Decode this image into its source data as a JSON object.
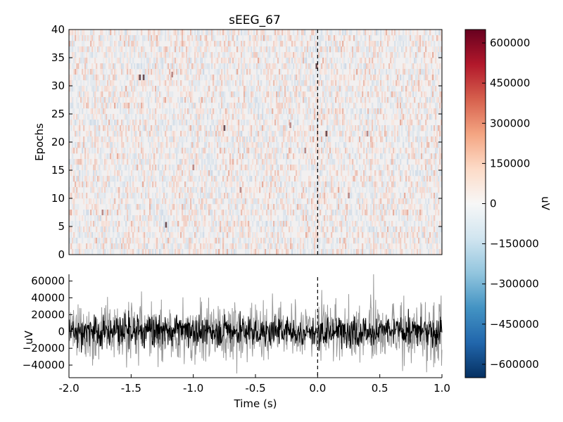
{
  "chart_data": [
    {
      "type": "heatmap",
      "title": "sEEG_67",
      "xlabel": "",
      "ylabel": "Epochs",
      "xlim": [
        -2.0,
        1.0
      ],
      "ylim": [
        0,
        40
      ],
      "y_ticks": [
        "0",
        "5",
        "10",
        "15",
        "20",
        "25",
        "30",
        "35",
        "40"
      ],
      "event_marker_x": 0.0,
      "epochs": 40,
      "colormap": "RdBu_r",
      "colorbar": {
        "label": "uV",
        "range": [
          -650000,
          650000
        ],
        "ticks": [
          "600000",
          "450000",
          "300000",
          "150000",
          "0",
          "−150000",
          "−300000",
          "−450000",
          "−600000"
        ],
        "tick_values": [
          600000,
          450000,
          300000,
          150000,
          0,
          -150000,
          -300000,
          -450000,
          -600000
        ],
        "colors": [
          "#053061",
          "#2166ac",
          "#4393c3",
          "#92c5de",
          "#d1e5f0",
          "#f7f7f7",
          "#fddbc7",
          "#f4a582",
          "#d6604d",
          "#b2182b",
          "#67001f"
        ]
      },
      "highlights": [
        {
          "t": -1.43,
          "epoch": 31.5,
          "level": "strong"
        },
        {
          "t": -1.4,
          "epoch": 31.5,
          "level": "strong"
        },
        {
          "t": -1.17,
          "epoch": 32.0,
          "level": "medium"
        },
        {
          "t": -1.22,
          "epoch": 5.3,
          "level": "strong"
        },
        {
          "t": -0.75,
          "epoch": 22.5,
          "level": "strong"
        },
        {
          "t": -0.01,
          "epoch": 33.5,
          "level": "strong"
        },
        {
          "t": 0.07,
          "epoch": 21.5,
          "level": "strong"
        },
        {
          "t": -0.1,
          "epoch": 18.5,
          "level": "medium"
        },
        {
          "t": -0.22,
          "epoch": 23.0,
          "level": "medium"
        },
        {
          "t": 0.4,
          "epoch": 21.5,
          "level": "medium"
        },
        {
          "t": -0.62,
          "epoch": 11.5,
          "level": "medium"
        },
        {
          "t": -1.73,
          "epoch": 7.5,
          "level": "medium"
        },
        {
          "t": -1.0,
          "epoch": 15.5,
          "level": "medium"
        },
        {
          "t": 0.25,
          "epoch": 10.5,
          "level": "medium"
        }
      ]
    },
    {
      "type": "line",
      "title": "",
      "xlabel": "Time (s)",
      "ylabel": "uV",
      "xlim": [
        -2.0,
        1.0
      ],
      "ylim": [
        -55000,
        68000
      ],
      "x_ticks": [
        "-2.0",
        "-1.5",
        "-1.0",
        "-0.5",
        "0.0",
        "0.5",
        "1.0"
      ],
      "x_tick_values": [
        -2.0,
        -1.5,
        -1.0,
        -0.5,
        0.0,
        0.5,
        1.0
      ],
      "y_ticks": [
        "60000",
        "40000",
        "20000",
        "0",
        "−20000",
        "−40000"
      ],
      "y_tick_values": [
        60000,
        40000,
        20000,
        0,
        -20000,
        -40000
      ],
      "event_marker_x": 0.0,
      "series": [
        {
          "role": "mean",
          "color": "#000000",
          "amplitude": 10000
        },
        {
          "role": "spread",
          "color": "#999999",
          "amplitude": 25000
        }
      ],
      "peaks": [
        {
          "t": 0.45,
          "value": 68000
        },
        {
          "t": 0.34,
          "value": -37000
        },
        {
          "t": -0.65,
          "value": -50000
        }
      ]
    }
  ]
}
